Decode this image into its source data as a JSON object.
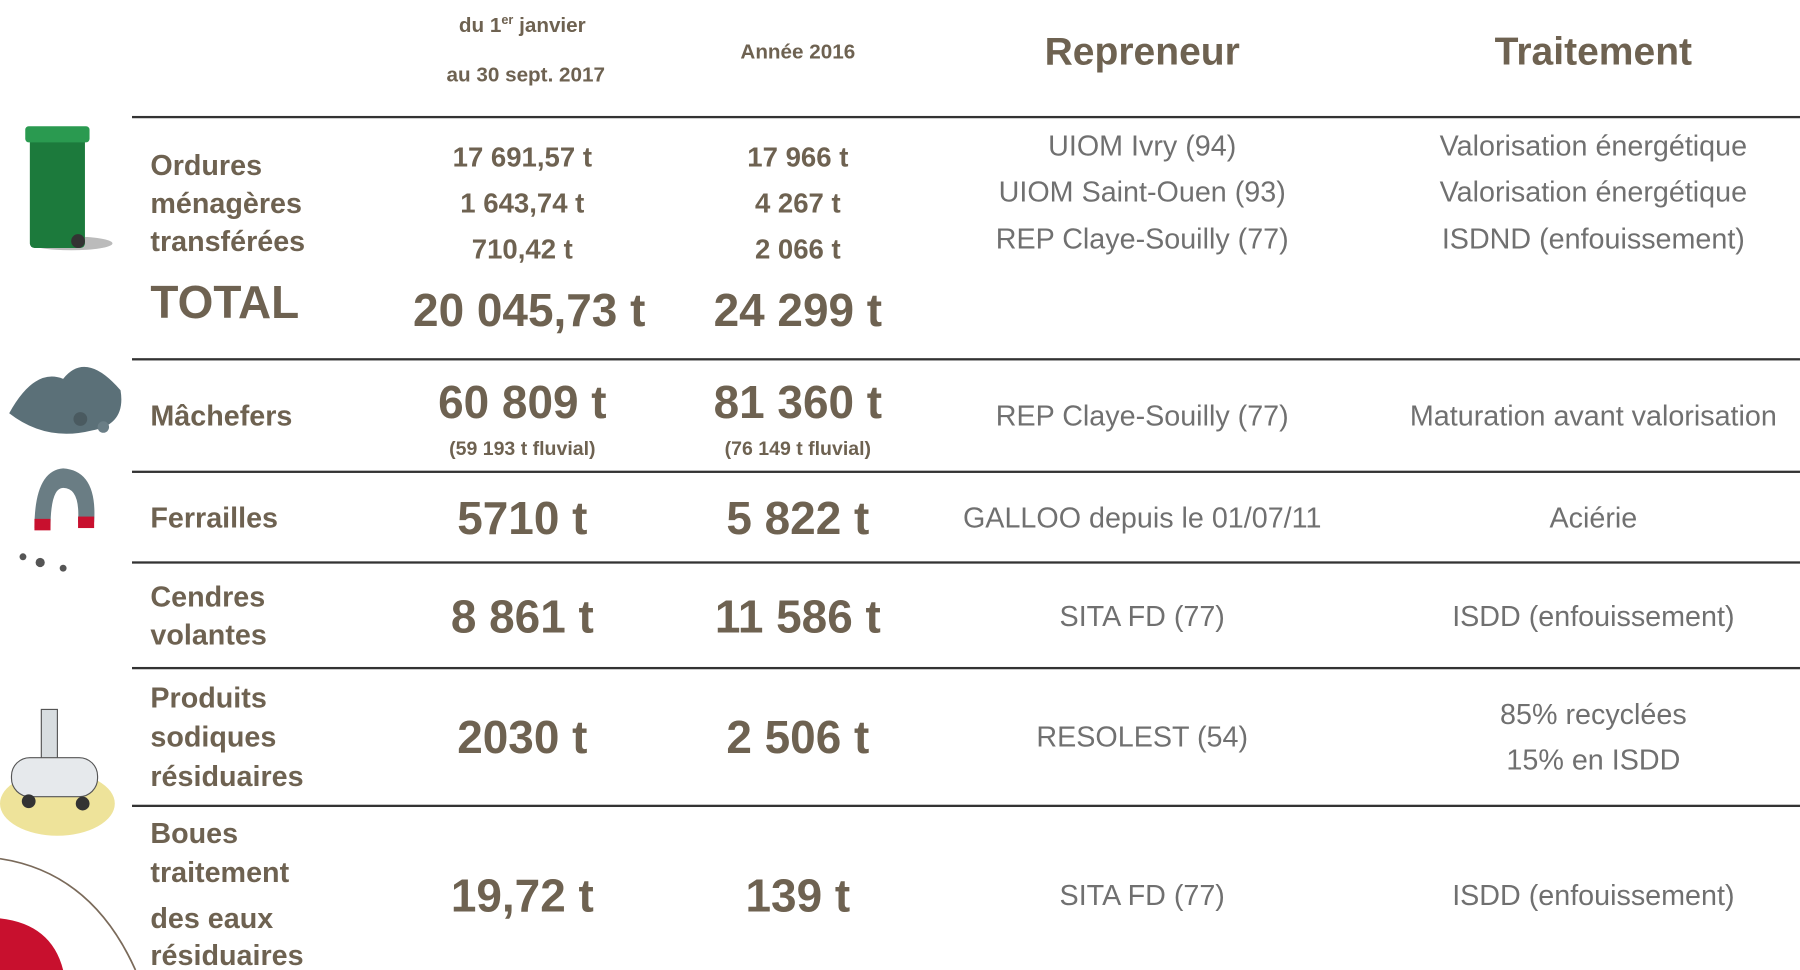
{
  "header": {
    "period_2017": {
      "line1": "du 1",
      "line1_sup": "er",
      "line1_end": "janvier",
      "line2": "au 30 sept. 2017"
    },
    "year_2016": "Année 2016",
    "repreneur": "Repreneur",
    "traitement": "Traitement"
  },
  "rows": [
    {
      "label": [
        "Ordures",
        "ménagères",
        "transférées"
      ],
      "v2017": [
        "17 691,57 t",
        "1 643,74 t",
        "710,42 t"
      ],
      "v2016": [
        "17 966 t",
        "4 267 t",
        "2 066 t"
      ],
      "repreneur": [
        "UIOM Ivry (94)",
        "UIOM Saint-Ouen (93)",
        "REP Claye-Souilly (77)"
      ],
      "traitement": [
        "Valorisation énergétique",
        "Valorisation énergétique",
        "ISDND (enfouissement)"
      ],
      "total": {
        "label": "TOTAL",
        "v2017": "20 045,73 t",
        "v2016": "24 299 t"
      }
    },
    {
      "label": [
        "Mâchefers"
      ],
      "v2017": [
        "60 809 t"
      ],
      "v2017_note": "(59 193 t fluvial)",
      "v2016": [
        "81 360 t"
      ],
      "v2016_note": "(76 149 t fluvial)",
      "repreneur": [
        "REP Claye-Souilly (77)"
      ],
      "traitement": [
        "Maturation avant valorisation"
      ]
    },
    {
      "label": [
        "Ferrailles"
      ],
      "v2017": [
        "5710 t"
      ],
      "v2016": [
        "5 822 t"
      ],
      "repreneur": [
        "GALLOO depuis le 01/07/11"
      ],
      "traitement": [
        "Aciérie"
      ]
    },
    {
      "label": [
        "Cendres",
        "volantes"
      ],
      "v2017": [
        "8 861 t"
      ],
      "v2016": [
        "11 586 t"
      ],
      "repreneur": [
        "SITA FD (77)"
      ],
      "traitement": [
        "ISDD (enfouissement)"
      ]
    },
    {
      "label": [
        "Produits",
        "sodiques",
        "résiduaires"
      ],
      "v2017": [
        "2030 t"
      ],
      "v2016": [
        "2 506 t"
      ],
      "repreneur": [
        "RESOLEST (54)"
      ],
      "traitement": [
        "85% recyclées",
        "15% en ISDD"
      ]
    },
    {
      "label": [
        "Boues",
        "traitement",
        "des eaux",
        "résiduaires"
      ],
      "v2017": [
        "19,72 t"
      ],
      "v2016": [
        "139 t"
      ],
      "repreneur": [
        "SITA FD (77)"
      ],
      "traitement": [
        "ISDD (enfouissement)"
      ]
    }
  ]
}
